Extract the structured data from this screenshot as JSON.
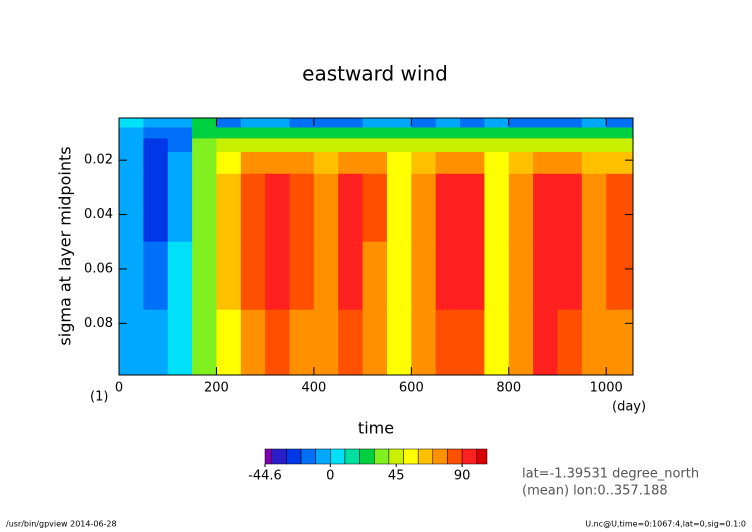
{
  "chart_data": {
    "type": "contour",
    "title": "eastward wind",
    "xlabel": "time",
    "ylabel": "sigma at layer midpoints",
    "xunit": "(day)",
    "yunit": "(1)",
    "annotations": [
      "lat=-1.39531 degree_north",
      "(mean) lon:0..357.188"
    ],
    "footer_left": "/usr/bin/gpview  2014-06-28",
    "footer_right": "U.nc@U,time=0:1067:4,lat=0,sig=0.1:0",
    "xlim": [
      0,
      1055
    ],
    "ylim": [
      0.099,
      0.0045
    ],
    "xticks": [
      0,
      200,
      400,
      600,
      800,
      1000
    ],
    "yticks": [
      0.02,
      0.04,
      0.06,
      0.08
    ],
    "x": [
      0,
      50,
      100,
      150,
      200,
      250,
      300,
      350,
      400,
      450,
      500,
      550,
      600,
      650,
      700,
      750,
      800,
      850,
      900,
      950,
      1000,
      1055
    ],
    "y": [
      0.0045,
      0.008,
      0.012,
      0.017,
      0.025,
      0.05,
      0.075,
      0.099
    ],
    "z": [
      [
        0,
        -10,
        -10,
        20,
        -20,
        -10,
        -10,
        -15,
        -15,
        -15,
        -10,
        -5,
        -15,
        -10,
        -15,
        -10,
        -15,
        -20,
        -15,
        -10,
        -15
      ],
      [
        -5,
        -20,
        -15,
        25,
        20,
        20,
        25,
        20,
        20,
        25,
        25,
        25,
        20,
        25,
        20,
        25,
        20,
        20,
        25,
        25,
        20
      ],
      [
        -5,
        -25,
        -15,
        30,
        45,
        45,
        45,
        40,
        40,
        45,
        45,
        40,
        40,
        45,
        40,
        40,
        40,
        40,
        45,
        40,
        40
      ],
      [
        -5,
        -25,
        -10,
        30,
        55,
        70,
        70,
        70,
        65,
        70,
        70,
        55,
        65,
        70,
        70,
        55,
        65,
        70,
        70,
        65,
        60
      ],
      [
        -5,
        -25,
        -10,
        30,
        65,
        85,
        90,
        85,
        75,
        90,
        80,
        55,
        75,
        90,
        90,
        55,
        75,
        95,
        90,
        75,
        80
      ],
      [
        -5,
        -15,
        0,
        30,
        65,
        85,
        90,
        85,
        75,
        90,
        75,
        55,
        75,
        90,
        90,
        55,
        75,
        95,
        90,
        75,
        80
      ],
      [
        -5,
        -5,
        0,
        30,
        55,
        75,
        85,
        75,
        70,
        85,
        70,
        55,
        70,
        85,
        85,
        55,
        75,
        90,
        85,
        75,
        70
      ]
    ],
    "colorbar": {
      "levels": [
        -44.6,
        -40,
        -30,
        -20,
        -10,
        0,
        10,
        20,
        30,
        40,
        50,
        60,
        70,
        80,
        90,
        100,
        107
      ],
      "colors": [
        "#8000b0",
        "#2a1ec8",
        "#0038e8",
        "#0070f8",
        "#00a8ff",
        "#00e0f8",
        "#00e0a0",
        "#00d040",
        "#80f020",
        "#c8f000",
        "#ffff00",
        "#ffc000",
        "#ff9000",
        "#ff5000",
        "#ff2020",
        "#d80000"
      ],
      "ticks": [
        -44.6,
        0,
        45,
        90
      ]
    }
  }
}
